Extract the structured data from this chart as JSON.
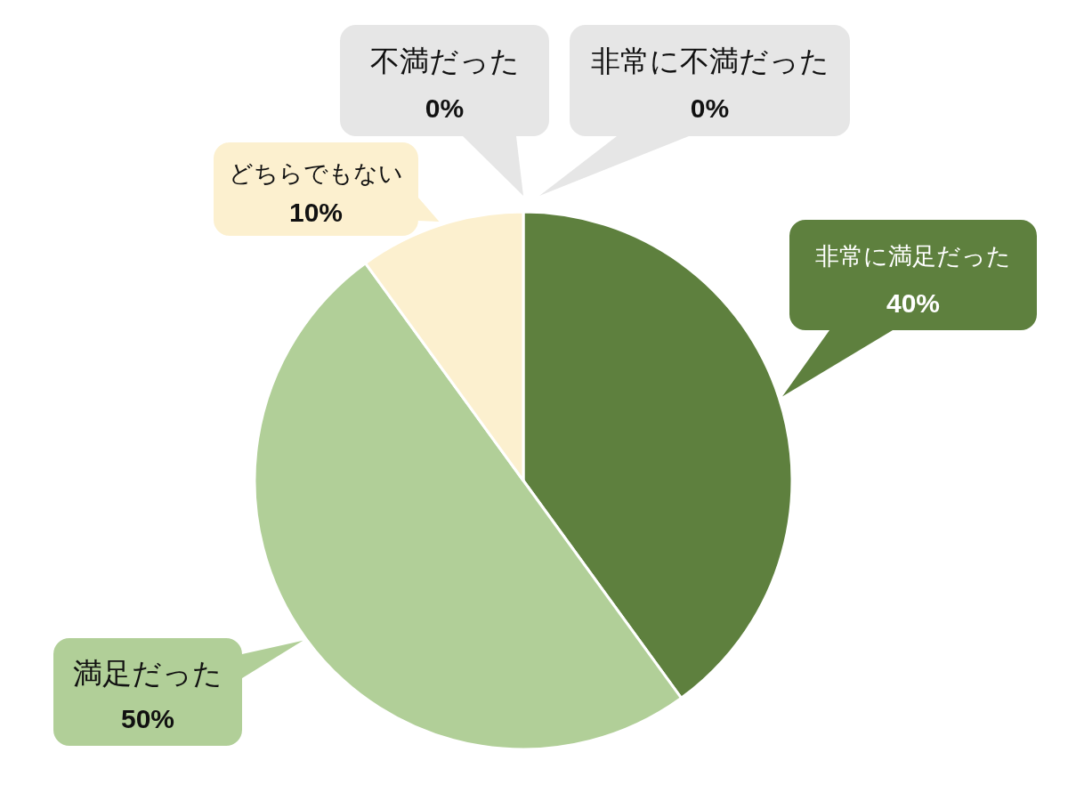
{
  "chart_data": {
    "type": "pie",
    "categories": [
      "非常に満足だった",
      "満足だった",
      "どちらでもない",
      "不満だった",
      "非常に不満だった"
    ],
    "values": [
      40,
      50,
      10,
      0,
      0
    ],
    "colors": [
      "#5e803e",
      "#b1cf98",
      "#fcf0cf",
      "#e6e6e6",
      "#e6e6e6"
    ],
    "value_labels": [
      "40%",
      "50%",
      "10%",
      "0%",
      "0%"
    ]
  }
}
